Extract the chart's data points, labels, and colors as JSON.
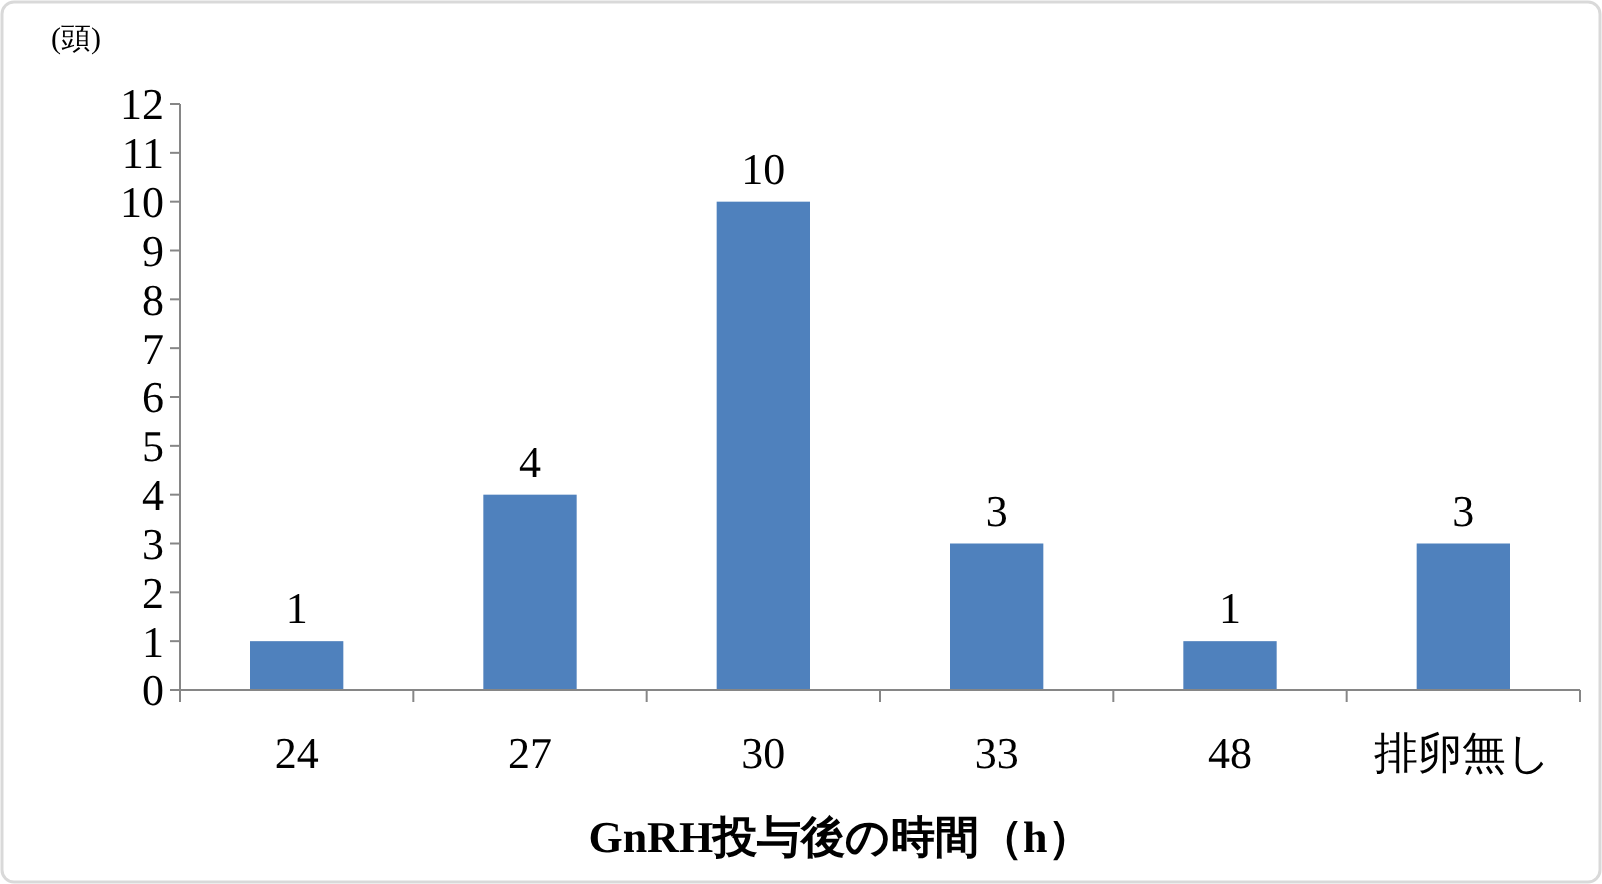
{
  "chart_data": {
    "type": "bar",
    "xlabel": "GnRH投与後の時間（h）",
    "ylabel": "(頭)",
    "categories": [
      "24",
      "27",
      "30",
      "33",
      "48",
      "排卵無し"
    ],
    "values": [
      1,
      4,
      10,
      3,
      1,
      3
    ],
    "color": "#4f81bd",
    "ylim": [
      0,
      12
    ],
    "yticks": [
      0,
      1,
      2,
      3,
      4,
      5,
      6,
      7,
      8,
      9,
      10,
      11,
      12
    ],
    "grid": false,
    "data_labels": true
  }
}
